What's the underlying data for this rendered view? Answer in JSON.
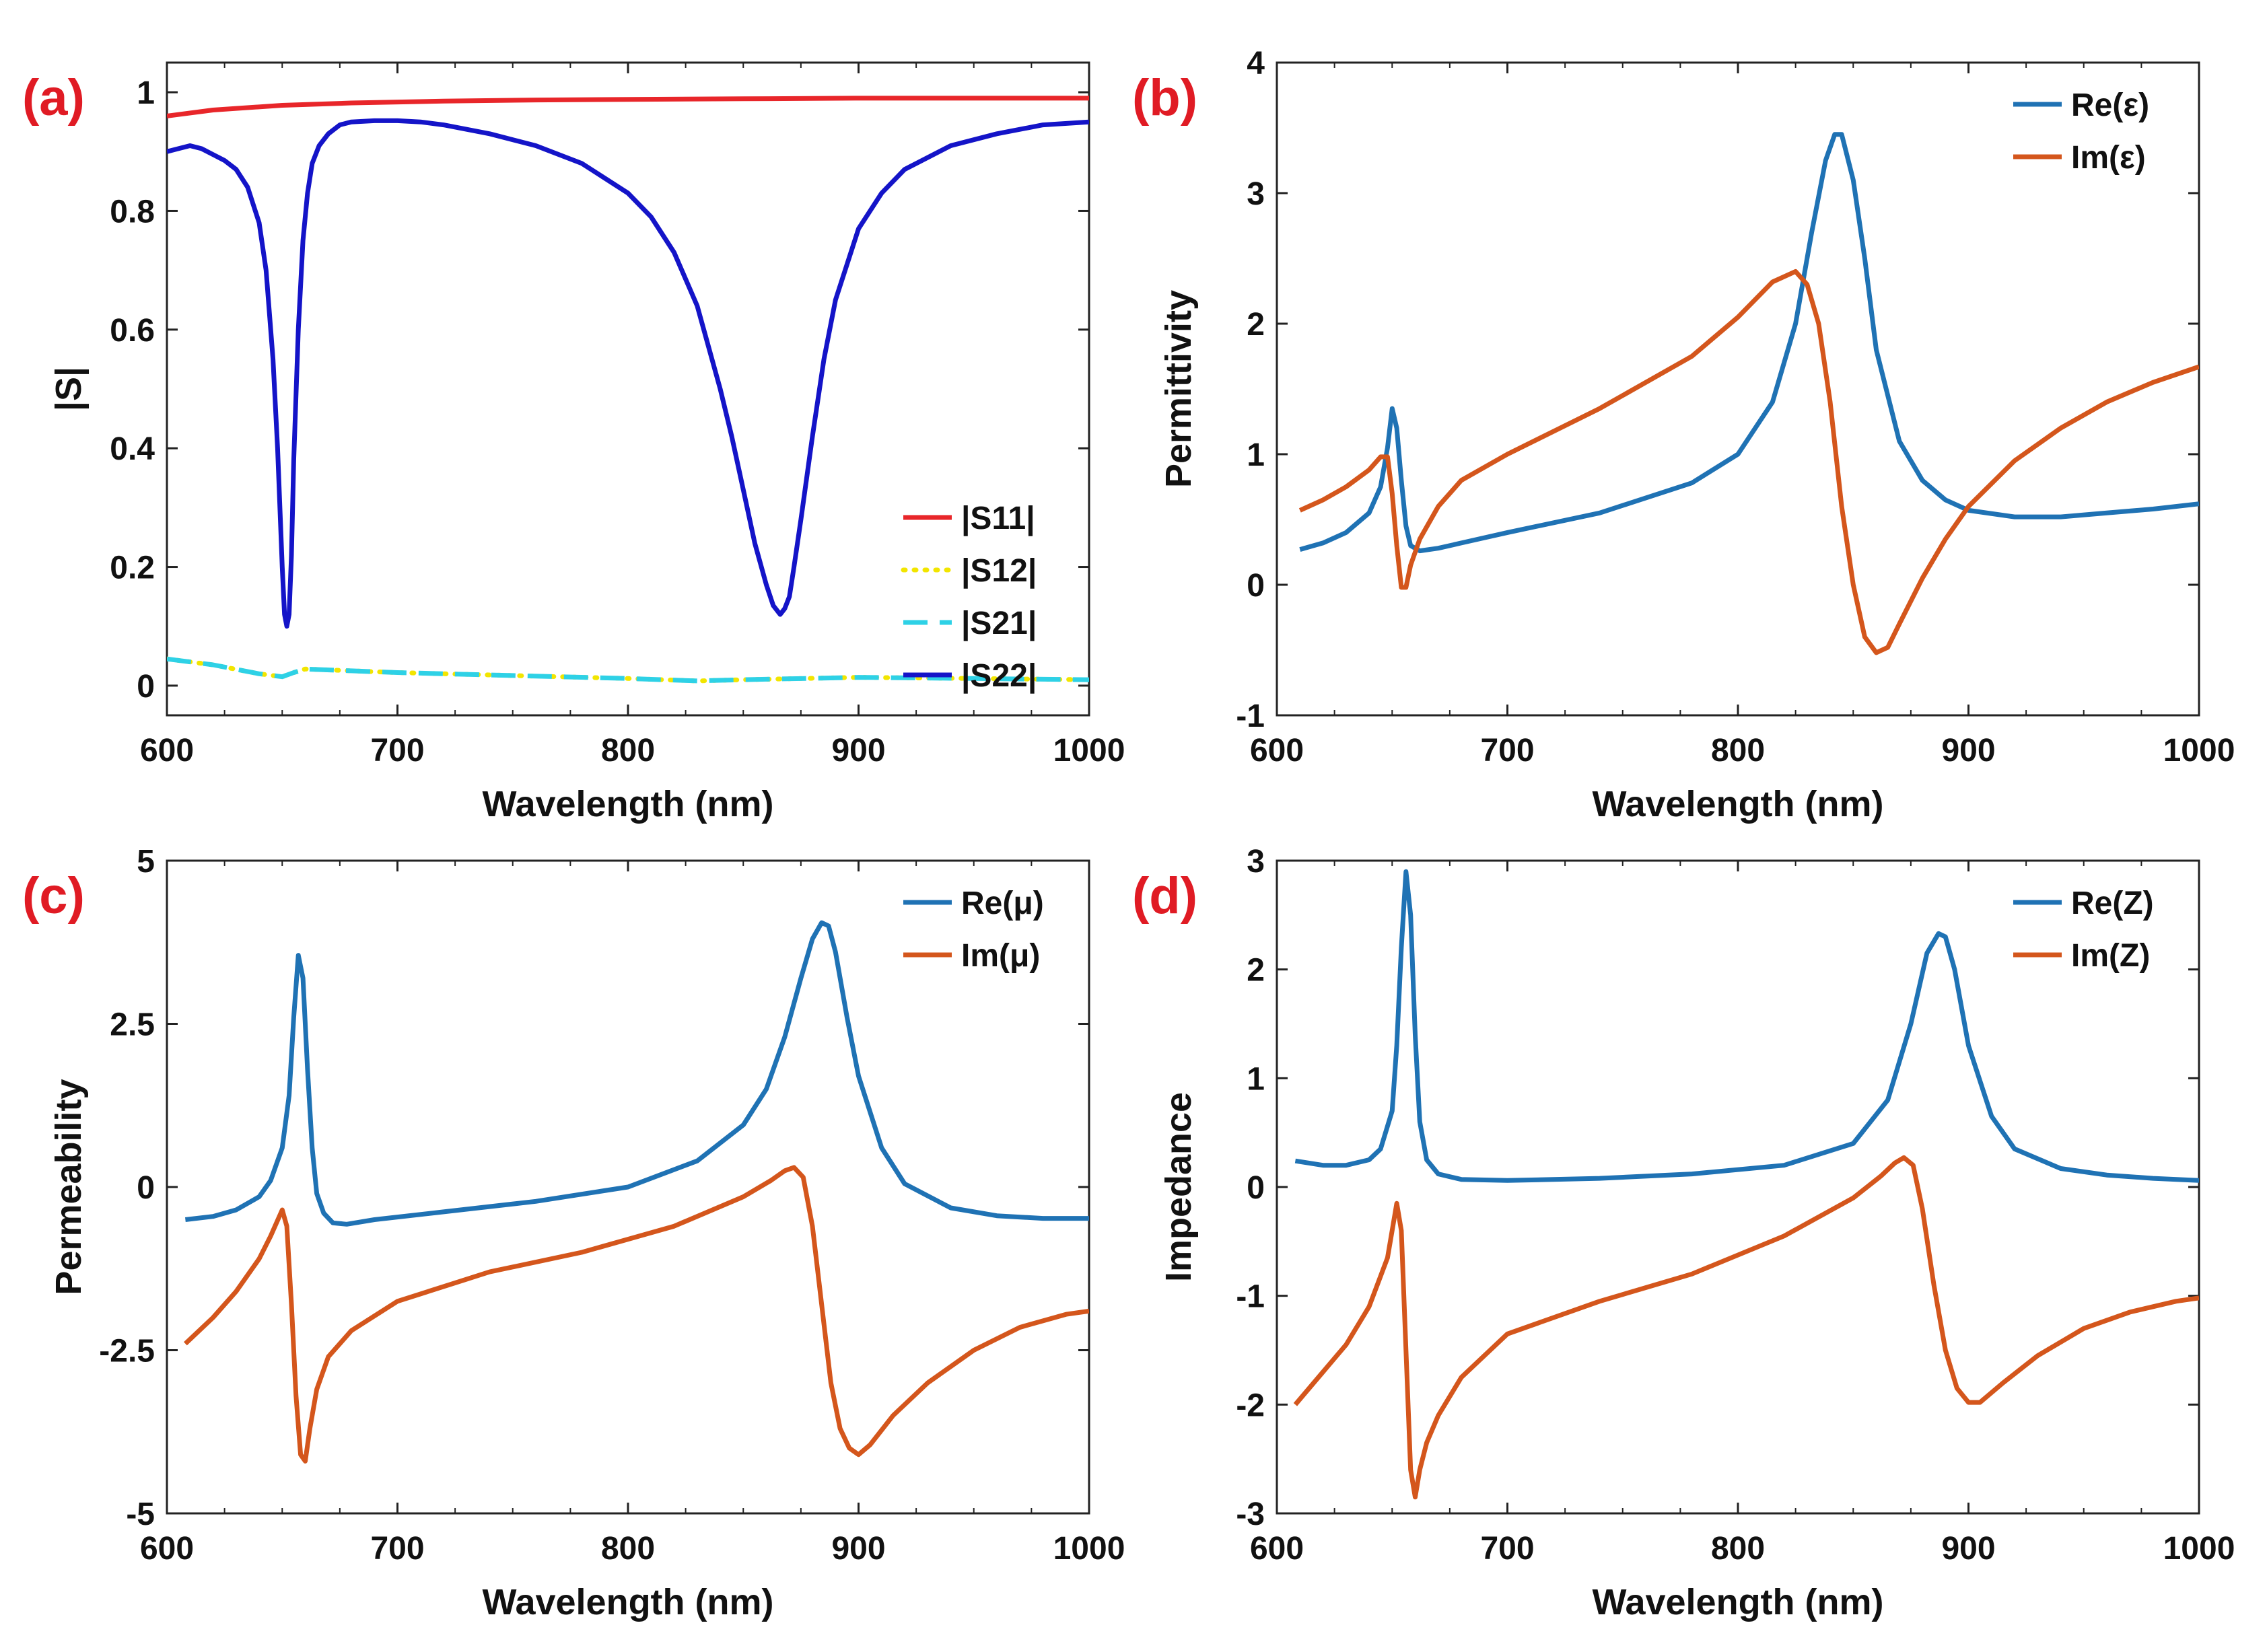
{
  "figure": {
    "panel_label_color": "#e01b24"
  },
  "chart_data": [
    {
      "panel": "(a)",
      "type": "line",
      "xlabel": "Wavelength (nm)",
      "ylabel": "|S|",
      "xlim": [
        600,
        1000
      ],
      "ylim": [
        -0.05,
        1.05
      ],
      "xticks": [
        600,
        700,
        800,
        900,
        1000
      ],
      "xtick_labels": [
        "600",
        "700",
        "800",
        "900",
        "1000"
      ],
      "yticks": [
        0,
        0.2,
        0.4,
        0.6,
        0.8,
        1
      ],
      "ytick_labels": [
        "0",
        "0.2",
        "0.4",
        "0.6",
        "0.8",
        "1"
      ],
      "legend_position": "lower-right",
      "series": [
        {
          "name": "|S11|",
          "color": "#e8262a",
          "style": "solid",
          "x": [
            600,
            620,
            650,
            680,
            720,
            760,
            800,
            850,
            900,
            950,
            1000
          ],
          "y": [
            0.96,
            0.97,
            0.978,
            0.982,
            0.985,
            0.987,
            0.988,
            0.989,
            0.99,
            0.99,
            0.99
          ]
        },
        {
          "name": "|S12|",
          "color": "#f2e500",
          "style": "dotted",
          "x": [
            600,
            620,
            640,
            650,
            655,
            660,
            680,
            700,
            750,
            800,
            830,
            850,
            900,
            950,
            1000
          ],
          "y": [
            0.045,
            0.035,
            0.02,
            0.015,
            0.022,
            0.028,
            0.025,
            0.022,
            0.017,
            0.012,
            0.008,
            0.01,
            0.014,
            0.012,
            0.01
          ]
        },
        {
          "name": "|S21|",
          "color": "#2ed1e6",
          "style": "dashed",
          "x": [
            600,
            620,
            640,
            650,
            655,
            660,
            680,
            700,
            750,
            800,
            830,
            850,
            900,
            950,
            1000
          ],
          "y": [
            0.045,
            0.035,
            0.02,
            0.015,
            0.022,
            0.028,
            0.025,
            0.022,
            0.017,
            0.012,
            0.008,
            0.01,
            0.014,
            0.012,
            0.01
          ]
        },
        {
          "name": "|S22|",
          "color": "#1414c8",
          "style": "solid",
          "x": [
            600,
            605,
            610,
            615,
            620,
            625,
            630,
            635,
            640,
            643,
            646,
            648,
            650,
            651,
            652,
            653,
            654,
            655,
            657,
            659,
            661,
            663,
            666,
            670,
            675,
            680,
            690,
            700,
            710,
            720,
            740,
            760,
            780,
            800,
            810,
            820,
            830,
            840,
            845,
            850,
            855,
            860,
            863,
            866,
            868,
            870,
            872,
            875,
            880,
            885,
            890,
            900,
            910,
            920,
            940,
            960,
            980,
            1000
          ],
          "y": [
            0.9,
            0.905,
            0.91,
            0.905,
            0.895,
            0.885,
            0.87,
            0.84,
            0.78,
            0.7,
            0.55,
            0.4,
            0.2,
            0.12,
            0.1,
            0.12,
            0.22,
            0.38,
            0.6,
            0.75,
            0.83,
            0.88,
            0.91,
            0.93,
            0.945,
            0.95,
            0.952,
            0.952,
            0.95,
            0.945,
            0.93,
            0.91,
            0.88,
            0.83,
            0.79,
            0.73,
            0.64,
            0.5,
            0.42,
            0.33,
            0.24,
            0.17,
            0.135,
            0.12,
            0.13,
            0.15,
            0.2,
            0.28,
            0.42,
            0.55,
            0.65,
            0.77,
            0.83,
            0.87,
            0.91,
            0.93,
            0.945,
            0.95
          ]
        }
      ]
    },
    {
      "panel": "(b)",
      "type": "line",
      "xlabel": "Wavelength (nm)",
      "ylabel": "Permittivity",
      "xlim": [
        600,
        1000
      ],
      "ylim": [
        -1,
        4
      ],
      "xticks": [
        600,
        700,
        800,
        900,
        1000
      ],
      "xtick_labels": [
        "600",
        "700",
        "800",
        "900",
        "1000"
      ],
      "yticks": [
        -1,
        0,
        1,
        2,
        3,
        4
      ],
      "ytick_labels": [
        "-1",
        "0",
        "1",
        "2",
        "3",
        "4"
      ],
      "legend_position": "top-right",
      "series": [
        {
          "name": "Re(ε)",
          "color": "#1f72b4",
          "style": "solid",
          "x": [
            610,
            620,
            630,
            640,
            645,
            648,
            650,
            652,
            654,
            656,
            658,
            662,
            670,
            680,
            700,
            740,
            780,
            800,
            815,
            825,
            832,
            838,
            842,
            845,
            850,
            855,
            860,
            870,
            880,
            890,
            900,
            920,
            940,
            960,
            980,
            1000
          ],
          "y": [
            0.27,
            0.32,
            0.4,
            0.55,
            0.75,
            1.05,
            1.35,
            1.2,
            0.8,
            0.45,
            0.3,
            0.26,
            0.28,
            0.32,
            0.4,
            0.55,
            0.78,
            1.0,
            1.4,
            2.0,
            2.7,
            3.25,
            3.45,
            3.45,
            3.1,
            2.5,
            1.8,
            1.1,
            0.8,
            0.65,
            0.57,
            0.52,
            0.52,
            0.55,
            0.58,
            0.62
          ]
        },
        {
          "name": "Im(ε)",
          "color": "#d4561c",
          "style": "solid",
          "x": [
            610,
            620,
            630,
            640,
            645,
            648,
            650,
            652,
            654,
            656,
            658,
            662,
            670,
            680,
            700,
            740,
            780,
            800,
            815,
            825,
            830,
            835,
            840,
            845,
            850,
            855,
            860,
            865,
            870,
            880,
            890,
            900,
            920,
            940,
            960,
            980,
            1000
          ],
          "y": [
            0.57,
            0.65,
            0.75,
            0.88,
            0.98,
            0.98,
            0.7,
            0.3,
            -0.02,
            -0.02,
            0.15,
            0.35,
            0.6,
            0.8,
            1.0,
            1.35,
            1.75,
            2.05,
            2.32,
            2.4,
            2.3,
            2.0,
            1.4,
            0.6,
            0.0,
            -0.4,
            -0.52,
            -0.48,
            -0.3,
            0.05,
            0.35,
            0.6,
            0.95,
            1.2,
            1.4,
            1.55,
            1.67
          ]
        }
      ]
    },
    {
      "panel": "(c)",
      "type": "line",
      "xlabel": "Wavelength (nm)",
      "ylabel": "Permeability",
      "xlim": [
        600,
        1000
      ],
      "ylim": [
        -5,
        5
      ],
      "xticks": [
        600,
        700,
        800,
        900,
        1000
      ],
      "xtick_labels": [
        "600",
        "700",
        "800",
        "900",
        "1000"
      ],
      "yticks": [
        -5,
        -2.5,
        0,
        2.5,
        5
      ],
      "ytick_labels": [
        "-5",
        "-2.5",
        "0",
        "2.5",
        "5"
      ],
      "legend_position": "top-right",
      "series": [
        {
          "name": "Re(μ)",
          "color": "#1f72b4",
          "style": "solid",
          "x": [
            608,
            620,
            630,
            640,
            645,
            650,
            653,
            655,
            657,
            659,
            661,
            663,
            665,
            668,
            672,
            678,
            690,
            720,
            760,
            800,
            830,
            850,
            860,
            868,
            875,
            880,
            884,
            887,
            890,
            895,
            900,
            910,
            920,
            940,
            960,
            980,
            1000
          ],
          "y": [
            -0.5,
            -0.45,
            -0.35,
            -0.15,
            0.1,
            0.6,
            1.4,
            2.6,
            3.55,
            3.2,
            1.8,
            0.6,
            -0.1,
            -0.4,
            -0.55,
            -0.57,
            -0.5,
            -0.38,
            -0.22,
            0.0,
            0.4,
            0.95,
            1.5,
            2.3,
            3.2,
            3.8,
            4.05,
            4.0,
            3.6,
            2.6,
            1.7,
            0.6,
            0.05,
            -0.32,
            -0.44,
            -0.48,
            -0.48
          ]
        },
        {
          "name": "Im(μ)",
          "color": "#d4561c",
          "style": "solid",
          "x": [
            608,
            620,
            630,
            640,
            645,
            650,
            652,
            654,
            656,
            658,
            660,
            662,
            665,
            670,
            680,
            700,
            740,
            780,
            820,
            850,
            862,
            868,
            872,
            876,
            880,
            884,
            888,
            892,
            896,
            900,
            905,
            915,
            930,
            950,
            970,
            990,
            1000
          ],
          "y": [
            -2.4,
            -2.0,
            -1.6,
            -1.1,
            -0.75,
            -0.35,
            -0.6,
            -1.8,
            -3.2,
            -4.1,
            -4.2,
            -3.7,
            -3.1,
            -2.6,
            -2.2,
            -1.75,
            -1.3,
            -1.0,
            -0.6,
            -0.15,
            0.1,
            0.25,
            0.3,
            0.15,
            -0.6,
            -1.8,
            -3.0,
            -3.7,
            -4.0,
            -4.1,
            -3.95,
            -3.5,
            -3.0,
            -2.5,
            -2.15,
            -1.95,
            -1.9
          ]
        }
      ]
    },
    {
      "panel": "(d)",
      "type": "line",
      "xlabel": "Wavelength (nm)",
      "ylabel": "Impedance",
      "xlim": [
        600,
        1000
      ],
      "ylim": [
        -3,
        3
      ],
      "xticks": [
        600,
        700,
        800,
        900,
        1000
      ],
      "xtick_labels": [
        "600",
        "700",
        "800",
        "900",
        "1000"
      ],
      "yticks": [
        -3,
        -2,
        -1,
        0,
        1,
        2,
        3
      ],
      "ytick_labels": [
        "-3",
        "-2",
        "-1",
        "0",
        "1",
        "2",
        "3"
      ],
      "legend_position": "top-right",
      "series": [
        {
          "name": "Re(Z)",
          "color": "#1f72b4",
          "style": "solid",
          "x": [
            608,
            620,
            630,
            640,
            645,
            650,
            652,
            654,
            656,
            658,
            660,
            662,
            665,
            670,
            680,
            700,
            740,
            780,
            820,
            850,
            865,
            875,
            882,
            887,
            890,
            894,
            900,
            910,
            920,
            940,
            960,
            980,
            1000
          ],
          "y": [
            0.24,
            0.2,
            0.2,
            0.25,
            0.35,
            0.7,
            1.3,
            2.2,
            2.9,
            2.5,
            1.4,
            0.6,
            0.25,
            0.12,
            0.07,
            0.06,
            0.08,
            0.12,
            0.2,
            0.4,
            0.8,
            1.5,
            2.15,
            2.33,
            2.3,
            2.0,
            1.3,
            0.65,
            0.35,
            0.17,
            0.11,
            0.08,
            0.06
          ]
        },
        {
          "name": "Im(Z)",
          "color": "#d4561c",
          "style": "solid",
          "x": [
            608,
            620,
            630,
            640,
            648,
            652,
            654,
            656,
            658,
            660,
            662,
            665,
            670,
            680,
            700,
            740,
            780,
            820,
            850,
            862,
            868,
            872,
            876,
            880,
            885,
            890,
            895,
            900,
            905,
            915,
            930,
            950,
            970,
            990,
            1000
          ],
          "y": [
            -2.0,
            -1.7,
            -1.45,
            -1.1,
            -0.65,
            -0.15,
            -0.4,
            -1.5,
            -2.6,
            -2.85,
            -2.6,
            -2.35,
            -2.1,
            -1.75,
            -1.35,
            -1.05,
            -0.8,
            -0.45,
            -0.1,
            0.1,
            0.22,
            0.27,
            0.2,
            -0.2,
            -0.9,
            -1.5,
            -1.85,
            -1.98,
            -1.98,
            -1.8,
            -1.55,
            -1.3,
            -1.15,
            -1.05,
            -1.02
          ]
        }
      ]
    }
  ]
}
